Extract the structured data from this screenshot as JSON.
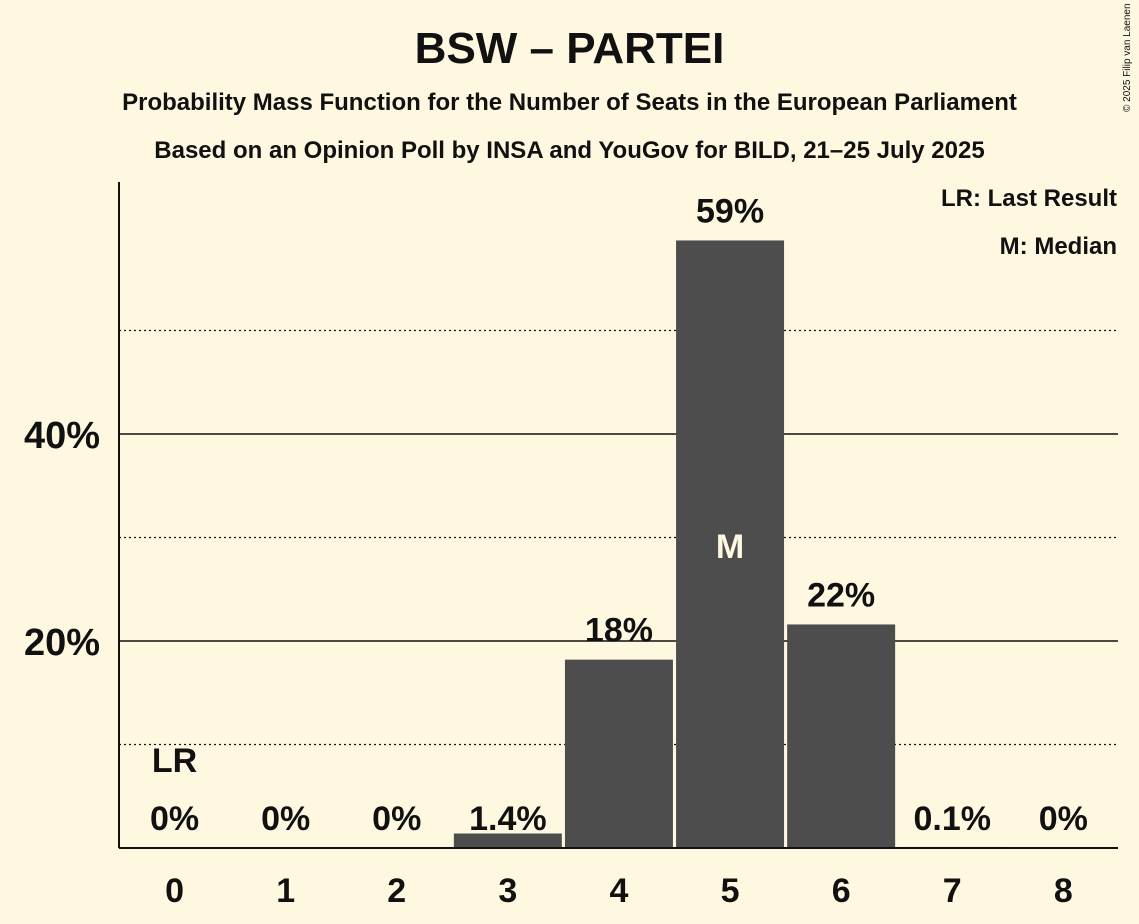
{
  "title": "BSW – PARTEI",
  "subtitle": "Probability Mass Function for the Number of Seats in the European Parliament",
  "subtitle2": "Based on an Opinion Poll by INSA and YouGov for BILD, 21–25 July 2025",
  "copyright": "© 2025 Filip van Laenen",
  "legend": {
    "last_result": "LR: Last Result",
    "median": "M: Median"
  },
  "colors": {
    "background": "#FFF8E1",
    "bar": "#4D4D4D",
    "text": "#111111"
  },
  "chart_data": {
    "type": "bar",
    "categories": [
      "0",
      "1",
      "2",
      "3",
      "4",
      "5",
      "6",
      "7",
      "8"
    ],
    "values": [
      0,
      0,
      0,
      1.4,
      18.2,
      58.7,
      21.6,
      0.1,
      0
    ],
    "labels": [
      "0%",
      "0%",
      "0%",
      "1.4%",
      "18%",
      "59%",
      "22%",
      "0.1%",
      "0%"
    ],
    "ylim": [
      0,
      64
    ],
    "yticks": [
      {
        "value": 20,
        "label": "20%"
      },
      {
        "value": 40,
        "label": "40%"
      }
    ],
    "minor_gridlines": [
      10,
      30,
      50
    ],
    "last_result_index": 0,
    "last_result_label": "LR",
    "median_index": 5,
    "median_label": "M"
  }
}
